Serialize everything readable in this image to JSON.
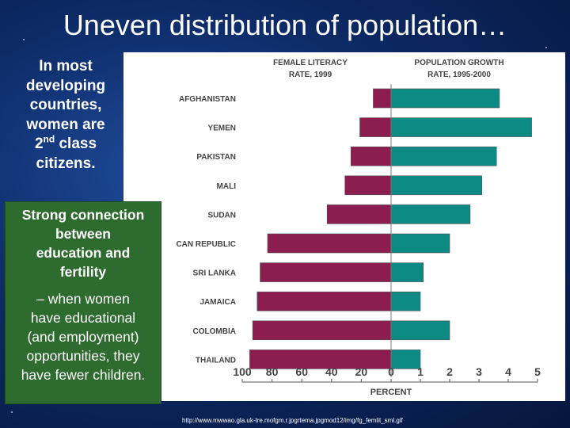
{
  "slide": {
    "title": "Uneven distribution of population…",
    "bullet1": {
      "line1": "In most",
      "line2": "developing",
      "line3": "countries,",
      "line4": "women are",
      "line5_main": "2",
      "line5_sup": "nd",
      "line5_rest": " class",
      "line6": "citizens."
    },
    "box": {
      "heading_l1": "Strong connection",
      "heading_l2": "between",
      "heading_l3": "education and",
      "heading_l4": "fertility",
      "body_l1": "– when women",
      "body_l2": "have educational",
      "body_l3": "(and employment)",
      "body_l4": "opportunities, they",
      "body_l5": "have fewer children."
    },
    "source_url": "http://www.mwwao.gla.uk-tre.mofgm.r.jpgrtema.jpgmod12/img/fg_femlit_sml.gif"
  },
  "chart_data": {
    "type": "bar",
    "left_header": [
      "FEMALE LITERACY",
      "RATE, 1999"
    ],
    "right_header": [
      "POPULATION GROWTH",
      "RATE, 1995-2000"
    ],
    "categories": [
      "AFGHANISTAN",
      "YEMEN",
      "PAKISTAN",
      "MALI",
      "SUDAN",
      "CAN REPUBLIC",
      "SRI LANKA",
      "JAMAICA",
      "COLOMBIA",
      "THAILAND"
    ],
    "series": [
      {
        "values": [
          12,
          21,
          27,
          31,
          43,
          83,
          88,
          90,
          93,
          95
        ],
        "color": "#8b1e4f"
      },
      {
        "values": [
          3.7,
          4.8,
          3.6,
          3.1,
          2.7,
          2.0,
          1.1,
          1.0,
          2.0,
          1.0
        ],
        "color": "#0e8a84"
      }
    ],
    "x_ticks": [
      "100",
      "80",
      "60",
      "40",
      "20",
      "0",
      "1",
      "2",
      "3",
      "4",
      "5"
    ],
    "xlabel": "PERCENT",
    "left_range": [
      0,
      100
    ],
    "right_range": [
      0,
      5
    ]
  }
}
